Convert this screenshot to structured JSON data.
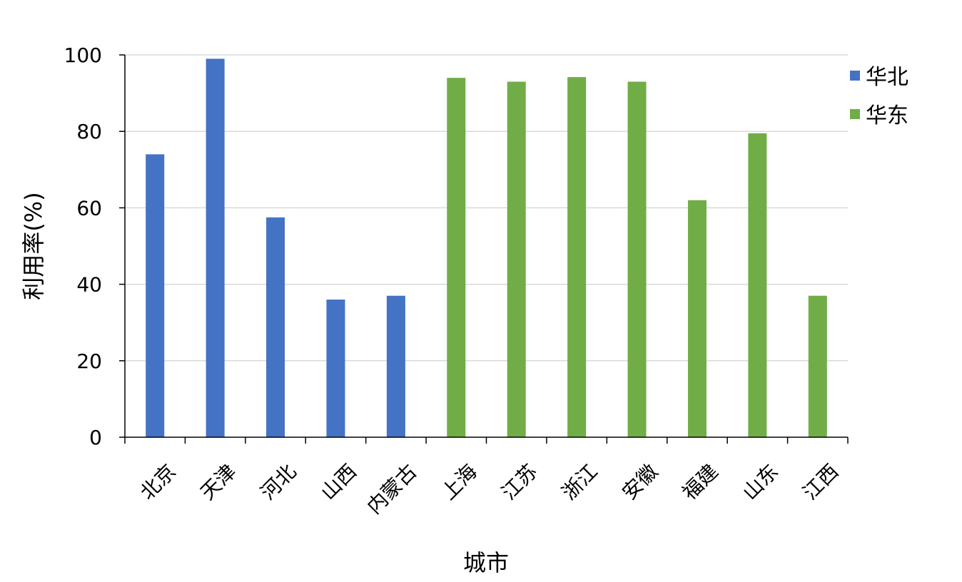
{
  "chart_data": {
    "type": "bar",
    "categories": [
      "北京",
      "天津",
      "河北",
      "山西",
      "内蒙古",
      "上海",
      "江苏",
      "浙江",
      "安徽",
      "福建",
      "山东",
      "江西"
    ],
    "series": [
      {
        "name": "华北",
        "color": "#4472C4",
        "values": [
          74,
          99,
          57.5,
          36,
          37,
          null,
          null,
          null,
          null,
          null,
          null,
          null
        ]
      },
      {
        "name": "华东",
        "color": "#70AD47",
        "values": [
          null,
          null,
          null,
          null,
          null,
          94,
          93,
          94.2,
          93,
          62,
          79.5,
          37
        ]
      }
    ],
    "xlabel": "城市",
    "ylabel": "利用率(%)",
    "ylim": [
      0,
      100
    ],
    "yticks": [
      0,
      20,
      40,
      60,
      80,
      100
    ],
    "grid": true,
    "legend_position": "top-right"
  }
}
